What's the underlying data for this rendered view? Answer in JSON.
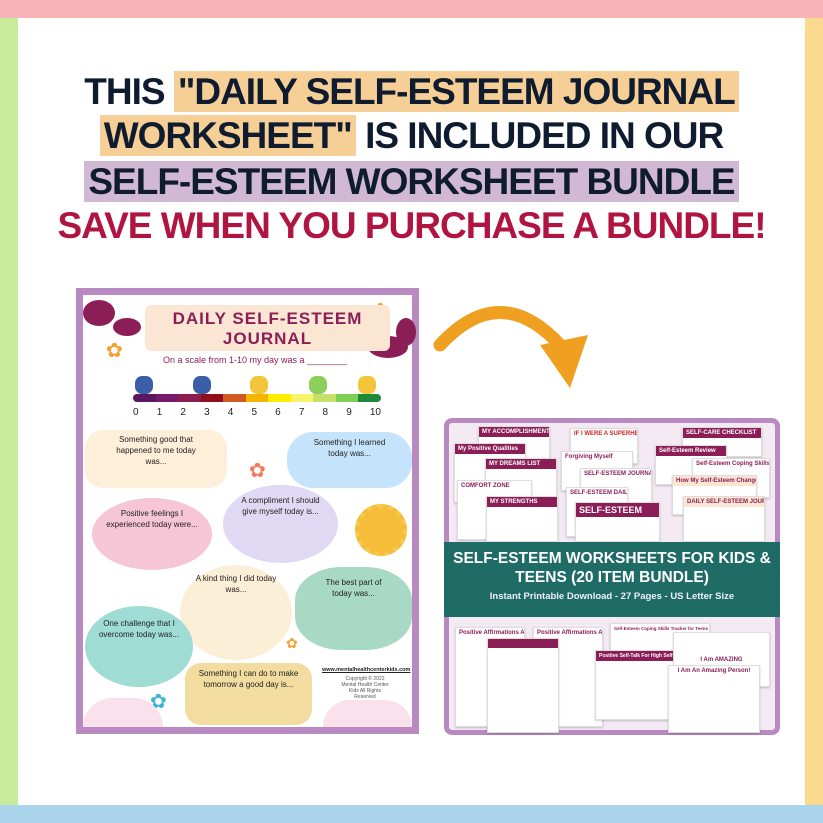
{
  "headline": {
    "line1_a": "THIS",
    "line1_b": "\"DAILY SELF-ESTEEM JOURNAL",
    "line2_a": "WORKSHEET\"",
    "line2_b": "IS INCLUDED IN OUR",
    "line3": "SELF-ESTEEM WORKSHEET BUNDLE",
    "line4": "SAVE WHEN YOU PURCHASE A BUNDLE!"
  },
  "colors": {
    "accent_red": "#b01440",
    "border_purple": "#b989c2",
    "banner_teal": "#1f6b66",
    "highlight_orange": "#f6cf96",
    "highlight_purple": "#d1b8d4"
  },
  "worksheet": {
    "title_line1": "DAILY SELF-ESTEEM",
    "title_line2": "JOURNAL",
    "scale_question": "On a scale from 1-10 my day was a ________",
    "scale_numbers": [
      "0",
      "1",
      "2",
      "3",
      "4",
      "5",
      "6",
      "7",
      "8",
      "9",
      "10"
    ],
    "bubbles": {
      "good": "Something good that happened to me today was...",
      "learned": "Something I learned today was...",
      "feelings": "Positive feelings I experienced today were...",
      "compliment": "A compliment I should give myself today is...",
      "kind": "A kind thing I did today was...",
      "best": "The best part of today was...",
      "challenge": "One challenge that I overcome today was...",
      "tomorrow": "Something I can do to make tomorrow a good day is..."
    },
    "website": "www.mentalhealthcenterkids.com",
    "copyright": "Copyright © 2022 Mental Health Center Kids All Rights Reserved"
  },
  "bundle": {
    "title": "SELF-ESTEEM WORKSHEETS FOR KIDS & TEENS (20 ITEM BUNDLE)",
    "subtitle": "Instant Printable Download - 27 Pages - US Letter Size",
    "top_thumbs": [
      "MY ACCOMPLISHMENTS",
      "My Positive Qualities",
      "MY DREAMS LIST",
      "COMFORT ZONE",
      "MY STRENGTHS",
      "IF I WERE A SUPERHERO",
      "Forgiving Myself",
      "SELF-ESTEEM JOURNAL",
      "SELF-ESTEEM DAILY CHECK IN",
      "SELF-ESTEEM",
      "SELF-CARE CHECKLIST",
      "Self-Esteem Review",
      "Self-Esteem Coping Skills Tracker",
      "How My Self-Esteem Changes",
      "DAILY SELF-ESTEEM JOURNAL"
    ],
    "bottom_thumbs": [
      "Positive Affirmations A-Z",
      "Positive Affirmations A-Z",
      "MY POSITIVE AFFIRMATIONS FROM A-Z",
      "Self-Esteem Coping Skills Tracker for Teens",
      "Positive Self-Talk For High Self-Esteem",
      "I Am AMAZING",
      "I Am An Amazing Person!"
    ]
  }
}
